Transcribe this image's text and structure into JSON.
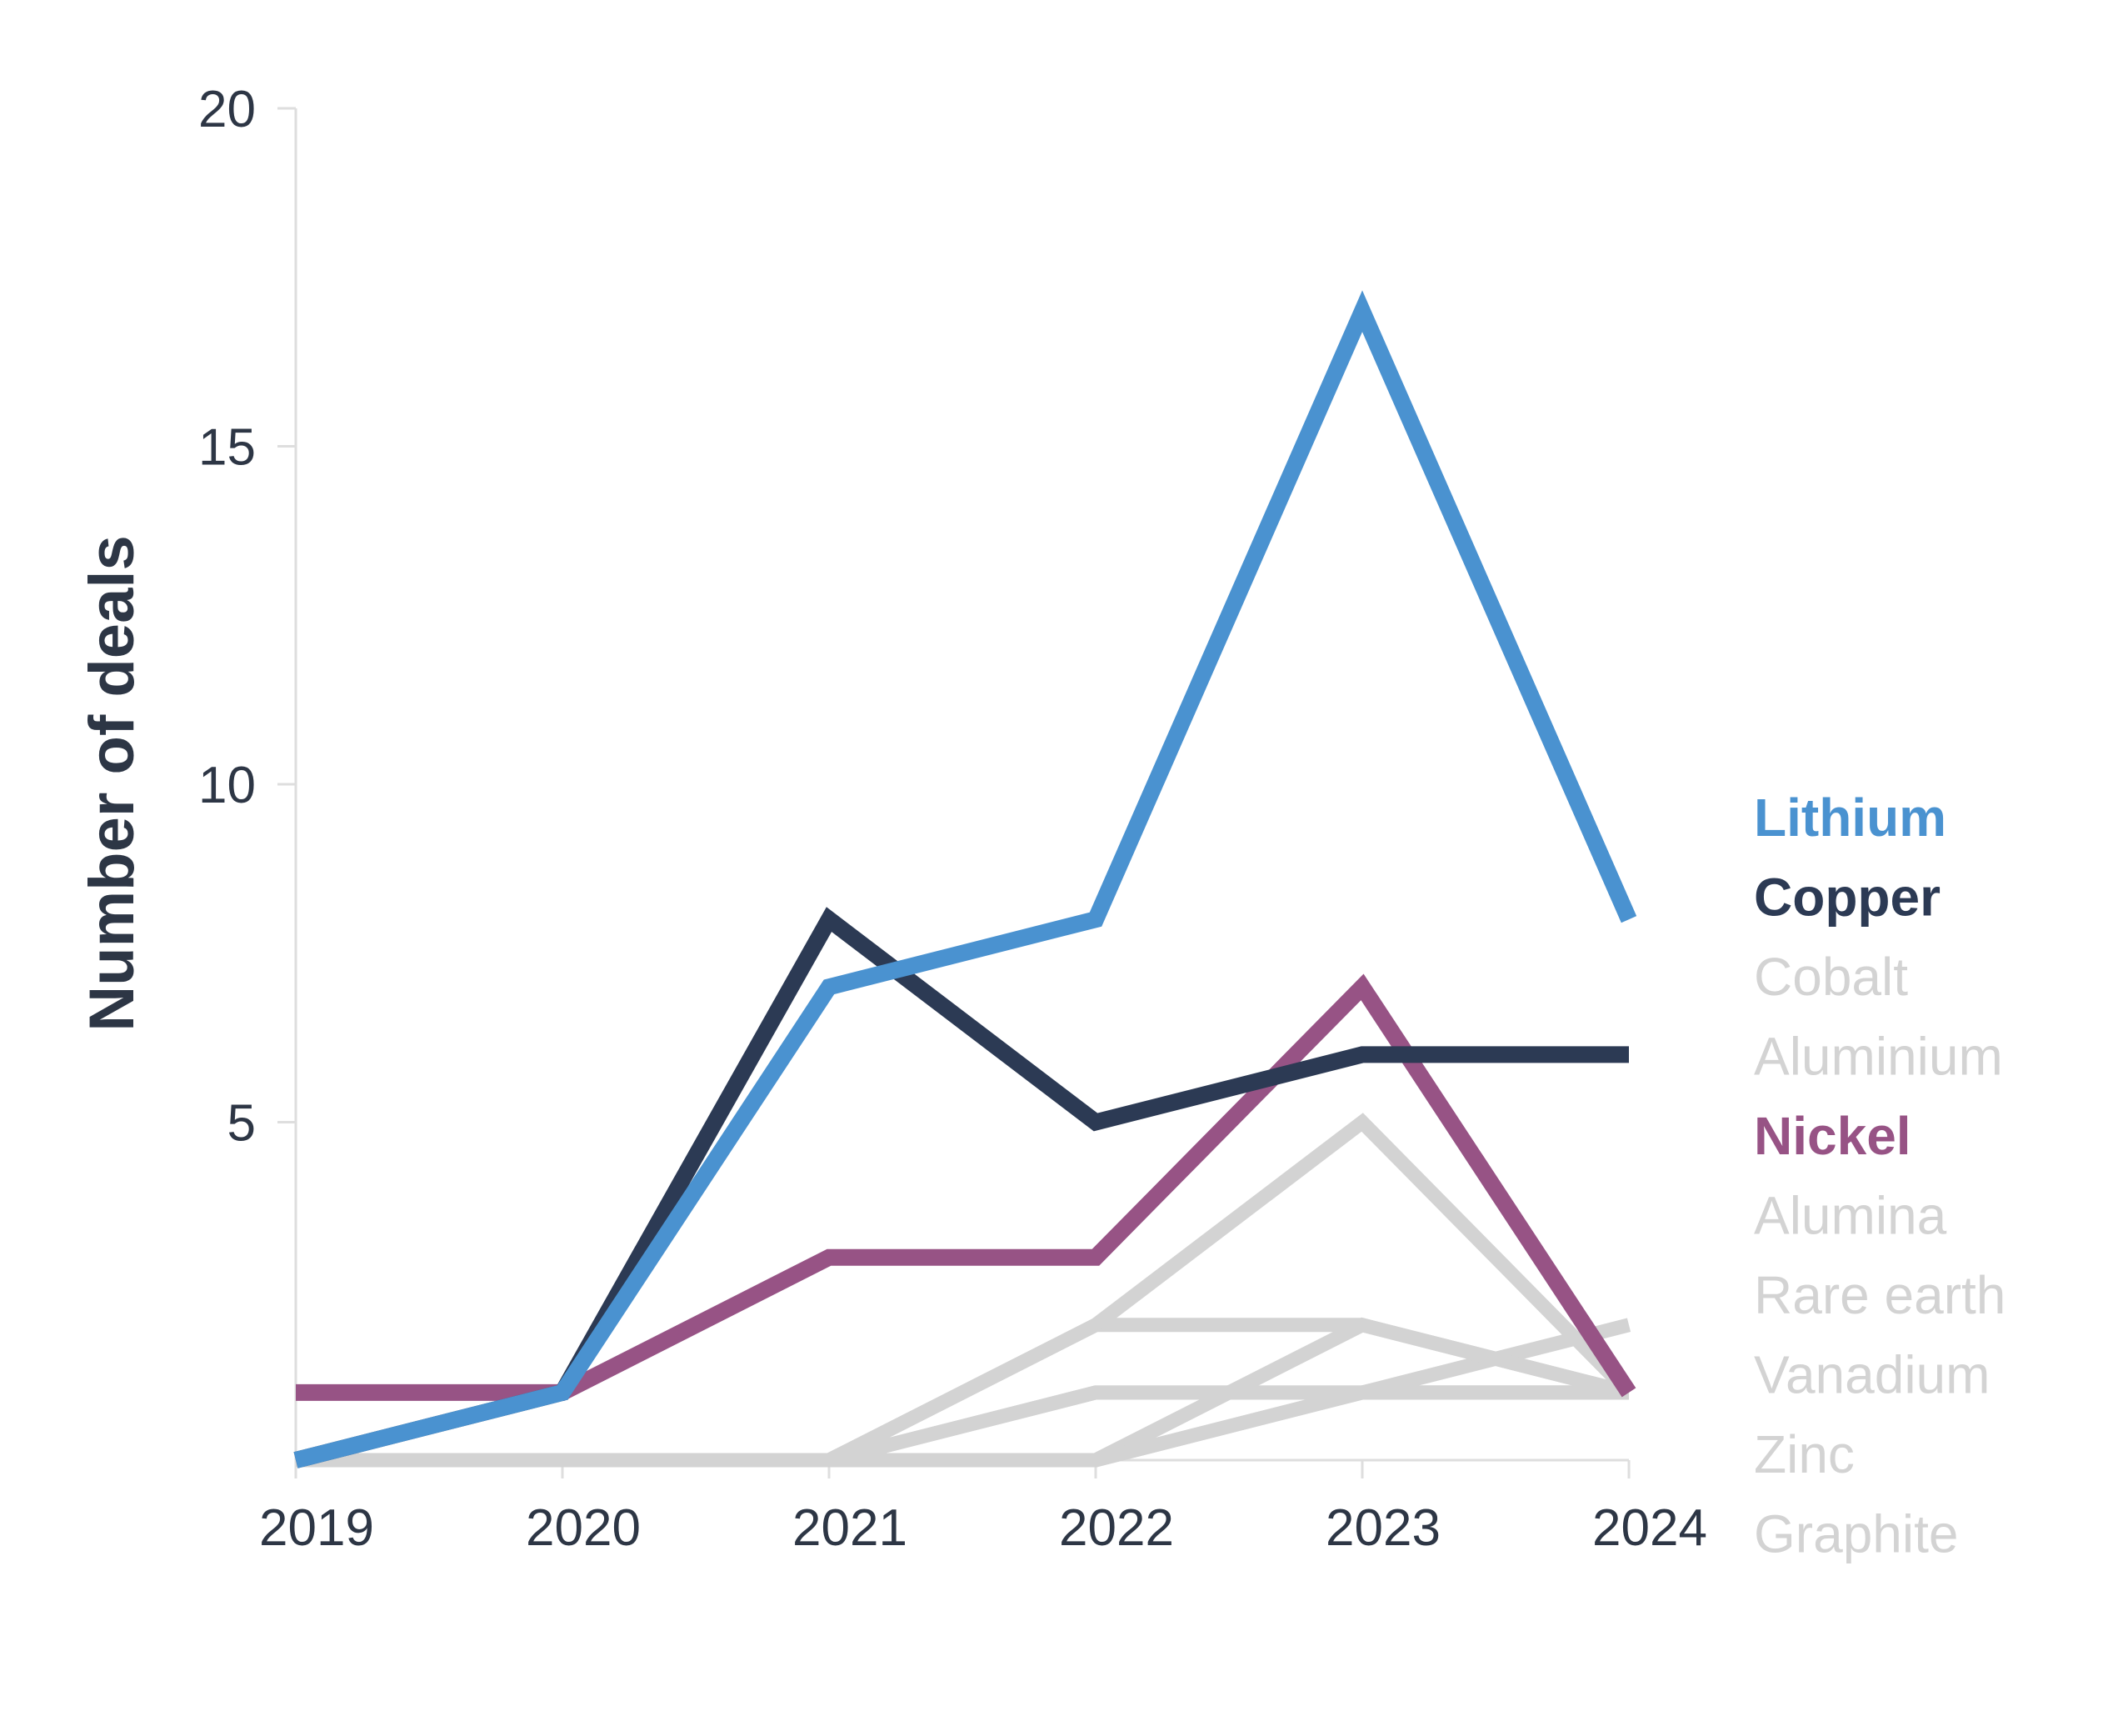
{
  "chart_data": {
    "type": "line",
    "title": "",
    "xlabel": "",
    "ylabel": "Number of deals",
    "x": [
      "2019",
      "2020",
      "2021",
      "2022",
      "2023",
      "2024"
    ],
    "ylim": [
      0,
      20
    ],
    "yticks": [
      5,
      10,
      15,
      20
    ],
    "grid": false,
    "legend_position": "right",
    "series": [
      {
        "name": "Graphite",
        "color": "#d3d3d3",
        "emphasis": false,
        "values": [
          0,
          0,
          0,
          0,
          1,
          2
        ]
      },
      {
        "name": "Zinc",
        "color": "#d3d3d3",
        "emphasis": false,
        "values": [
          0,
          0,
          0,
          0,
          2,
          1
        ]
      },
      {
        "name": "Vanadium",
        "color": "#d3d3d3",
        "emphasis": false,
        "values": [
          0,
          0,
          0,
          1,
          1,
          1
        ]
      },
      {
        "name": "Rare earth",
        "color": "#d3d3d3",
        "emphasis": false,
        "values": [
          0,
          0,
          0,
          2,
          2,
          1
        ]
      },
      {
        "name": "Alumina",
        "color": "#d3d3d3",
        "emphasis": false,
        "values": [
          0,
          0,
          0,
          0,
          1,
          1
        ]
      },
      {
        "name": "Aluminium",
        "color": "#d3d3d3",
        "emphasis": false,
        "values": [
          0,
          0,
          0,
          2,
          5,
          1
        ]
      },
      {
        "name": "Cobalt",
        "color": "#d3d3d3",
        "emphasis": false,
        "values": [
          0,
          0,
          0,
          1,
          1,
          1
        ]
      },
      {
        "name": "Nickel",
        "color": "#975385",
        "emphasis": true,
        "values": [
          1,
          1,
          3,
          3,
          7,
          1
        ]
      },
      {
        "name": "Copper",
        "color": "#2c3a54",
        "emphasis": true,
        "values": [
          0,
          1,
          8,
          5,
          6,
          6
        ]
      },
      {
        "name": "Lithium",
        "color": "#4a92d0",
        "emphasis": true,
        "values": [
          0,
          1,
          7,
          8,
          17,
          8
        ]
      }
    ],
    "legend_order": [
      "Lithium",
      "Copper",
      "Cobalt",
      "Aluminium",
      "Nickel",
      "Alumina",
      "Rare earth",
      "Vanadium",
      "Zinc",
      "Graphite"
    ]
  }
}
